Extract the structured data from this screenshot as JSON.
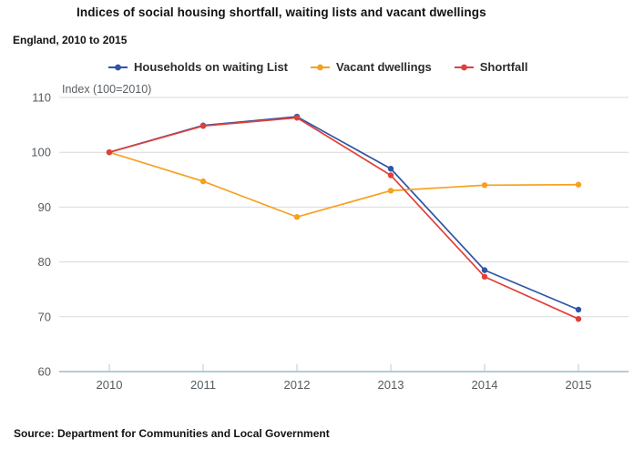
{
  "title": "Indices of social housing shortfall, waiting lists and vacant dwellings",
  "subtitle": "England, 2010 to 2015",
  "axis_note": "Index (100=2010)",
  "source": "Source: Department for Communities and Local Government",
  "colors": {
    "background": "#ffffff",
    "waiting_list": "#2f55a4",
    "vacant_dwellings": "#f7a01e",
    "shortfall": "#e0403a",
    "gridline": "#d9d9d9",
    "axis_line": "#b3cbd9",
    "axis_text": "#565b60"
  },
  "chart_data": {
    "type": "line",
    "title": "Indices of social housing shortfall, waiting lists and vacant dwellings",
    "subtitle": "England, 2010 to 2015",
    "ylabel": "Index (100=2010)",
    "xlabel": "",
    "x": [
      "2010",
      "2011",
      "2012",
      "2013",
      "2014",
      "2015"
    ],
    "ylim": [
      60,
      110
    ],
    "yticks": [
      110,
      100,
      90,
      80,
      70,
      60
    ],
    "grid": true,
    "legend_position": "top",
    "series": [
      {
        "name": "Households on waiting List",
        "color": "#2f55a4",
        "values": [
          100,
          104.9,
          106.5,
          97,
          78.5,
          71.3
        ]
      },
      {
        "name": "Vacant dwellings",
        "color": "#f7a01e",
        "values": [
          100,
          94.7,
          88.2,
          93,
          94,
          94.1
        ]
      },
      {
        "name": "Shortfall",
        "color": "#e0403a",
        "values": [
          100,
          104.8,
          106.3,
          95.8,
          77.3,
          69.6
        ]
      }
    ]
  }
}
